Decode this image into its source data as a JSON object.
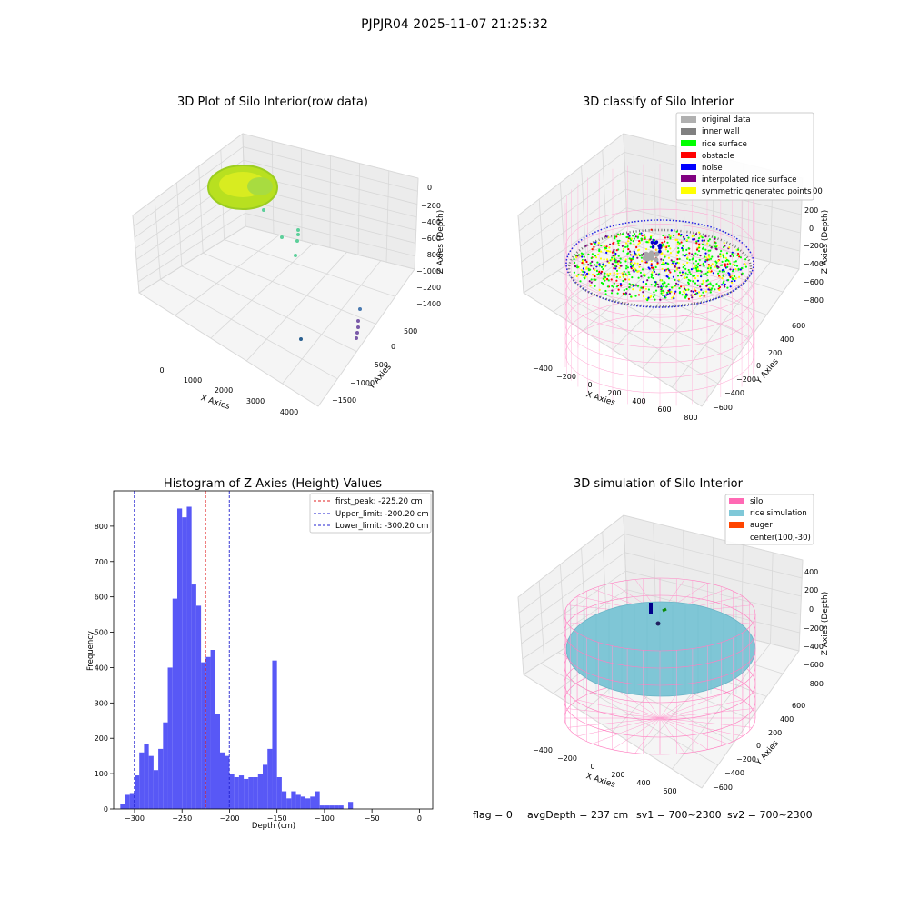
{
  "suptitle": "PJPJR04 2025-11-07 21:25:32",
  "status_line": {
    "flag": "flag = 0",
    "avg_depth": "avgDepth = 237 cm",
    "sv1": "sv1 = 700~2300",
    "sv2": "sv2 = 700~2300"
  },
  "colors": {
    "hist_bar": "#4f4ff5",
    "first_peak": "#e02020",
    "limit": "#2020d0",
    "silo": "#ff69b4",
    "rice_sim": "#7fc8d8",
    "auger": "#ff4500",
    "original": "#b0b0b0",
    "inner_wall": "#808080",
    "rice_surface": "#00ff00",
    "obstacle": "#ff0000",
    "noise": "#0000ff",
    "interp": "#800080",
    "symmetric": "#ffff00"
  },
  "chart_data": [
    {
      "type": "scatter3d",
      "title": "3D Plot of Silo Interior(row data)",
      "xlabel": "X Axies",
      "ylabel": "Y Axies",
      "zlabel": "Z Axies (Depth)",
      "xticks": [
        "0",
        "1000",
        "2000",
        "3000",
        "4000"
      ],
      "yticks": [
        "500",
        "0",
        "−500",
        "−1000",
        "−1500"
      ],
      "zticks": [
        "0",
        "−200",
        "−400",
        "−600",
        "−800",
        "−1000",
        "−1200",
        "−1400"
      ]
    },
    {
      "type": "scatter3d",
      "title": "3D classify of Silo Interior",
      "xlabel": "X Axies",
      "ylabel": "Y Axies",
      "zlabel": "Z Axies (Depth)",
      "xticks": [
        "−400",
        "−200",
        "0",
        "200",
        "400",
        "600",
        "800"
      ],
      "yticks": [
        "600",
        "400",
        "200",
        "0",
        "−200",
        "−400",
        "−600"
      ],
      "zticks": [
        "200",
        "0",
        "−200",
        "−400",
        "−600",
        "−800"
      ],
      "legend": [
        {
          "label": "original data",
          "color": "#b0b0b0"
        },
        {
          "label": "inner wall",
          "color": "#808080"
        },
        {
          "label": "rice surface",
          "color": "#00ff00"
        },
        {
          "label": "obstacle",
          "color": "#ff0000"
        },
        {
          "label": "noise",
          "color": "#0000ff"
        },
        {
          "label": "interpolated rice surface",
          "color": "#800080"
        },
        {
          "label": "symmetric generated points",
          "color": "#ffff00"
        }
      ],
      "legend_extra": "00",
      "legend_position": "top-right"
    },
    {
      "type": "bar",
      "title": "Histogram of Z-Axies (Height) Values",
      "xlabel": "Depth (cm)",
      "ylabel": "Frequency",
      "xlim": [
        -322,
        14
      ],
      "ylim": [
        0,
        900
      ],
      "xticks": [
        -300,
        -250,
        -200,
        -150,
        -100,
        -50,
        0
      ],
      "yticks": [
        0,
        100,
        200,
        300,
        400,
        500,
        600,
        700,
        800
      ],
      "bin_start": -315,
      "bin_width": 5,
      "values": [
        15,
        40,
        45,
        95,
        160,
        185,
        150,
        110,
        170,
        245,
        400,
        595,
        850,
        825,
        855,
        635,
        575,
        415,
        430,
        450,
        270,
        160,
        150,
        100,
        90,
        95,
        85,
        90,
        90,
        100,
        125,
        170,
        420,
        90,
        50,
        30,
        50,
        40,
        35,
        30,
        35,
        50,
        10,
        10,
        10,
        10,
        10,
        0,
        20
      ],
      "lines": [
        {
          "label": "first_peak: -225.20 cm",
          "x": -225.2,
          "color": "#e02020"
        },
        {
          "label": "Upper_limit: -200.20 cm",
          "x": -200.2,
          "color": "#2020d0"
        },
        {
          "label": "Lower_limit: -300.20 cm",
          "x": -300.2,
          "color": "#2020d0"
        }
      ],
      "legend_position": "top-right"
    },
    {
      "type": "surface3d",
      "title": "3D simulation of Silo Interior",
      "xlabel": "X Axies",
      "ylabel": "Y Axies",
      "zlabel": "Z Axies (Depth)",
      "xticks": [
        "−400",
        "−200",
        "0",
        "200",
        "400",
        "600"
      ],
      "yticks": [
        "600",
        "400",
        "200",
        "0",
        "−200",
        "−400",
        "−600"
      ],
      "zticks": [
        "400",
        "200",
        "0",
        "−200",
        "−400",
        "−600",
        "−800"
      ],
      "legend": [
        {
          "label": "silo",
          "color": "#ff69b4"
        },
        {
          "label": "rice simulation",
          "color": "#7fc8d8"
        },
        {
          "label": "auger",
          "color": "#ff4500"
        },
        {
          "label": "center(100,-30)",
          "color": ""
        }
      ],
      "legend_position": "top-right"
    }
  ]
}
